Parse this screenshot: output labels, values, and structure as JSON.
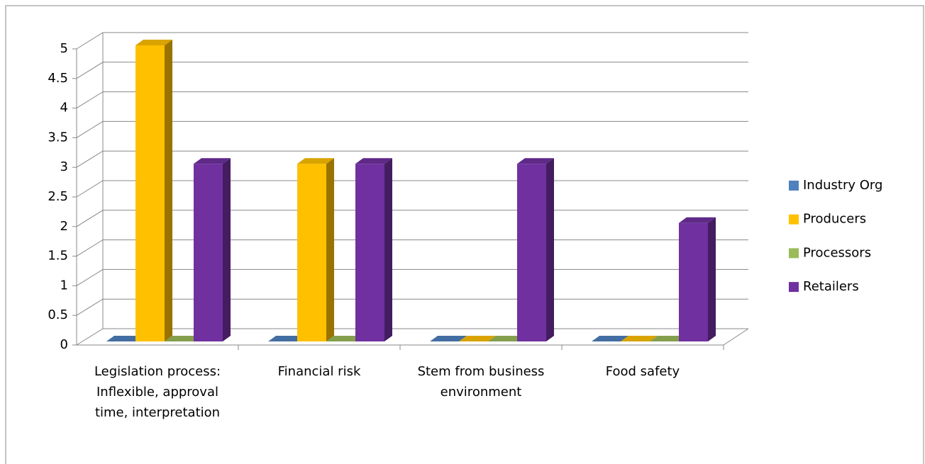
{
  "chart_data": {
    "type": "bar3d",
    "categories": [
      "Legislation process: Inflexible, approval time, interpretation",
      "Financial risk",
      "Stem from business environment",
      "Food safety"
    ],
    "series": [
      {
        "name": "Industry Org",
        "color": "#4f81bd",
        "values": [
          0,
          0,
          0,
          0
        ]
      },
      {
        "name": "Producers",
        "color": "#ffc000",
        "values": [
          5,
          3,
          0,
          0
        ]
      },
      {
        "name": "Processors",
        "color": "#9bbb59",
        "values": [
          0,
          0,
          0,
          0
        ]
      },
      {
        "name": "Retailers",
        "color": "#7030a0",
        "values": [
          3,
          3,
          3,
          2
        ]
      }
    ],
    "ylim": [
      0,
      5
    ],
    "yticks": [
      0,
      0.5,
      1,
      1.5,
      2,
      2.5,
      3,
      3.5,
      4,
      4.5,
      5
    ],
    "grid": true,
    "legend": "right"
  }
}
